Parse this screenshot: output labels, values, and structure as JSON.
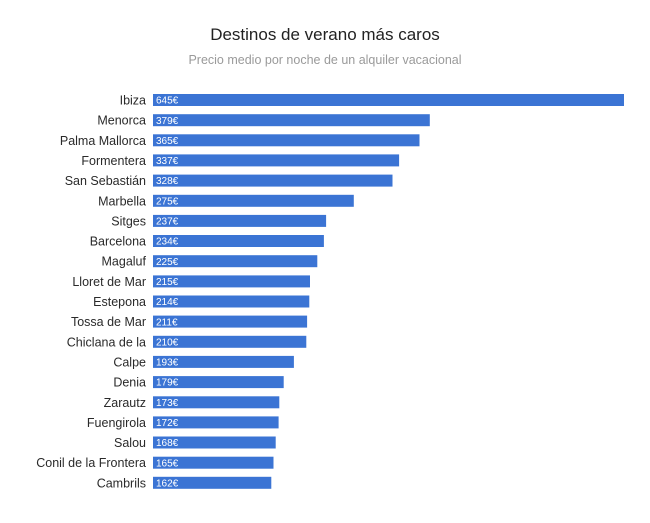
{
  "chart_data": {
    "type": "bar",
    "orientation": "horizontal",
    "title": "Destinos de verano más caros",
    "subtitle": "Precio medio por noche de un alquiler vacacional",
    "categories": [
      "Ibiza",
      "Menorca",
      "Palma Mallorca",
      "Formentera",
      "San Sebastián",
      "Marbella",
      "Sitges",
      "Barcelona",
      "Magaluf",
      "Lloret de Mar",
      "Estepona",
      "Tossa de Mar",
      "Chiclana de la",
      "Calpe",
      "Denia",
      "Zarautz",
      "Fuengirola",
      "Salou",
      "Conil de la Frontera",
      "Cambrils"
    ],
    "values": [
      645,
      379,
      365,
      337,
      328,
      275,
      237,
      234,
      225,
      215,
      214,
      211,
      210,
      193,
      179,
      173,
      172,
      168,
      165,
      162
    ],
    "value_labels": [
      "645€",
      "379€",
      "365€",
      "337€",
      "328€",
      "275€",
      "237€",
      "234€",
      "225€",
      "215€",
      "214€",
      "211€",
      "210€",
      "193€",
      "179€",
      "173€",
      "172€",
      "168€",
      "165€",
      "162€"
    ],
    "xlim": [
      0,
      645
    ],
    "grid": false,
    "bar_color": "#3b74d4"
  }
}
